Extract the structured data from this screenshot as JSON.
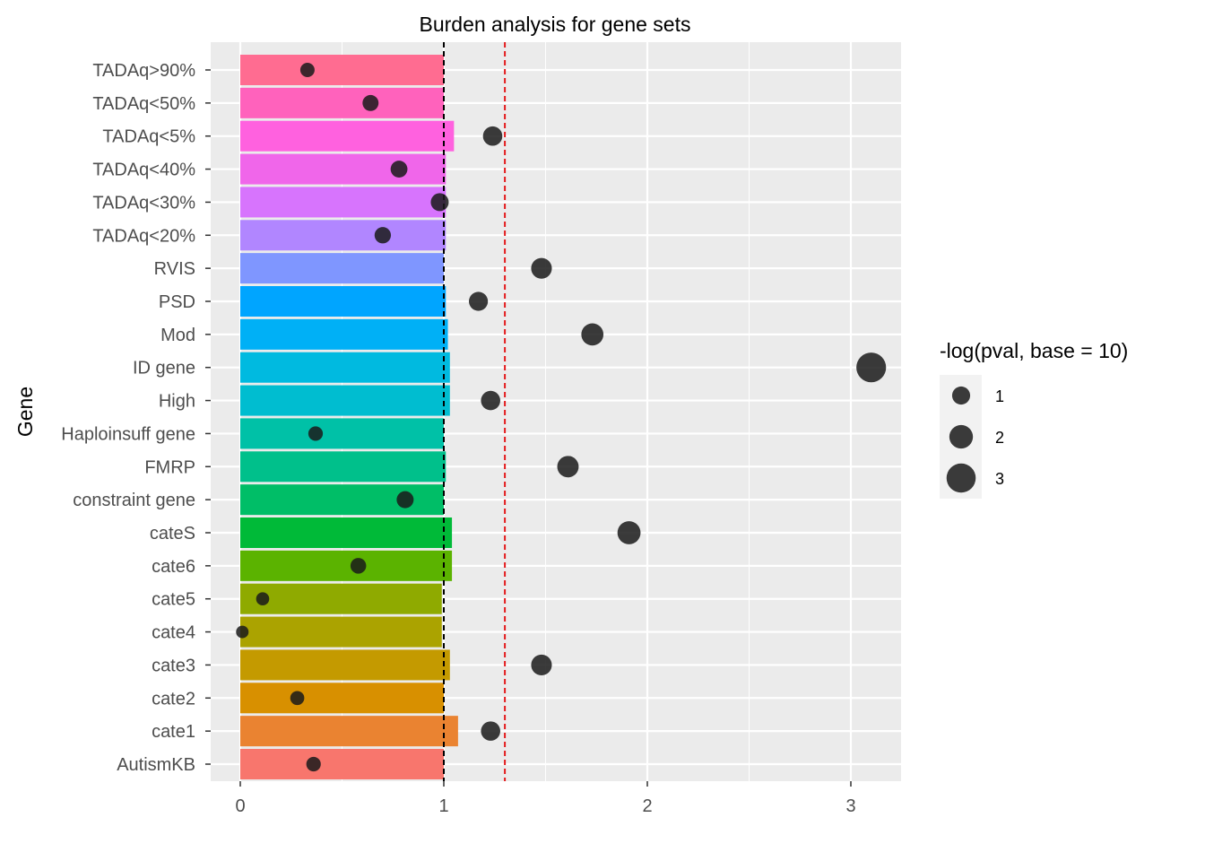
{
  "chart_data": {
    "type": "bar",
    "title": "Burden analysis for gene sets",
    "xlabel": "",
    "ylabel": "Gene",
    "xlim": [
      -0.12,
      3.25
    ],
    "xticks": [
      0,
      1,
      2,
      3
    ],
    "reference_lines": [
      {
        "value": 1,
        "color": "#000000",
        "style": "dashed"
      },
      {
        "value": 1.3,
        "color": "#e41a1c",
        "style": "dashed"
      }
    ],
    "categories": [
      "TADAq>90%",
      "TADAq<50%",
      "TADAq<5%",
      "TADAq<40%",
      "TADAq<30%",
      "TADAq<20%",
      "RVIS",
      "PSD",
      "Mod",
      "ID gene",
      "High",
      "Haploinsuff gene",
      "FMRP",
      "constraint gene",
      "cateS",
      "cate6",
      "cate5",
      "cate4",
      "cate3",
      "cate2",
      "cate1",
      "AutismKB"
    ],
    "bar_values": [
      1.0,
      1.0,
      1.05,
      1.01,
      1.01,
      1.01,
      1.0,
      1.01,
      1.02,
      1.03,
      1.03,
      1.0,
      1.01,
      1.0,
      1.04,
      1.04,
      0.99,
      0.99,
      1.03,
      1.0,
      1.07,
      1.0
    ],
    "point_values": [
      0.33,
      0.64,
      1.24,
      0.78,
      0.98,
      0.7,
      1.48,
      1.17,
      1.73,
      3.1,
      1.23,
      0.37,
      1.61,
      0.81,
      1.91,
      0.58,
      0.11,
      0.01,
      1.48,
      0.28,
      1.23,
      0.36
    ],
    "bar_colors": [
      "#FF6C91",
      "#FF62BC",
      "#FF61DF",
      "#F066EA",
      "#D774FD",
      "#B186FF",
      "#7F96FF",
      "#00A5FF",
      "#00B0F6",
      "#00BAE0",
      "#00BDD0",
      "#00C1A7",
      "#00C08B",
      "#00BE67",
      "#00BA38",
      "#5BB300",
      "#8FAA00",
      "#ABA300",
      "#C49A00",
      "#D89000",
      "#EA8331",
      "#F8766D"
    ],
    "point_color": "#1a1a1a",
    "legend": {
      "title": "-log(pval, base = 10)",
      "position": "right",
      "items": [
        "1",
        "2",
        "3"
      ],
      "sizes": [
        1,
        2,
        3
      ]
    },
    "grid": true
  }
}
